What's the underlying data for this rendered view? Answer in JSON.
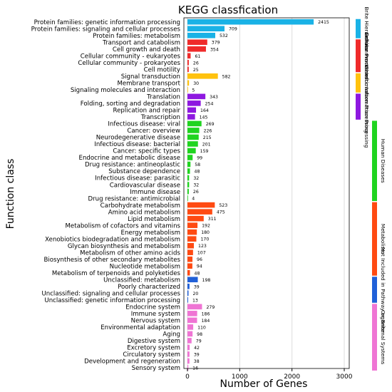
{
  "chart_data": {
    "type": "bar",
    "orientation": "horizontal",
    "title": "KEGG classfication",
    "xlabel": "Number of Genes",
    "ylabel": "Function class",
    "xlim": [
      0,
      3000
    ],
    "xticks": [
      "0",
      "1000",
      "2000",
      "3000"
    ],
    "grid": true,
    "categories": [
      "Protein families: genetic information processing",
      "Protein families: signaling and cellular processes",
      "Protein families: metabolism",
      "Transport and catabolism",
      "Cell growth and death",
      "Cellular community - eukaryotes",
      "Cellular community - prokaryotes",
      "Cell motility",
      "Signal transduction",
      "Membrane transport",
      "Signaling molecules and interaction",
      "Translation",
      "Folding, sorting and degradation",
      "Replication and repair",
      "Transcription",
      "Infectious disease: viral",
      "Cancer: overview",
      "Neurodegenerative disease",
      "Infectious disease: bacterial",
      "Cancer: specific types",
      "Endocrine and metabolic disease",
      "Drug resistance: antineoplastic",
      "Substance dependence",
      "Infectious disease: parasitic",
      "Cardiovascular disease",
      "Immune disease",
      "Drug resistance: antimicrobial",
      "Carbohydrate metabolism",
      "Amino acid metabolism",
      "Lipid metabolism",
      "Metabolism of cofactors and vitamins",
      "Energy metabolism",
      "Xenobiotics biodegradation and metabolism",
      "Glycan biosynthesis and metabolism",
      "Metabolism of other amino acids",
      "Biosynthesis of other secondary metabolites",
      "Nucleotide metabolism",
      "Metabolism of terpenoids and polyketides",
      "Unclassified: metabolism",
      "Poorly characterized",
      "Unclassified: signaling and cellular processes",
      "Unclassified: genetic information processing",
      "Endocrine system",
      "Immune system",
      "Nervous system",
      "Environmental adaptation",
      "Aging",
      "Digestive system",
      "Excretory system",
      "Circulatory system",
      "Development and regeneration",
      "Sensory system"
    ],
    "values": [
      2415,
      709,
      532,
      379,
      354,
      61,
      26,
      25,
      582,
      30,
      5,
      343,
      254,
      164,
      145,
      269,
      226,
      215,
      201,
      159,
      99,
      58,
      48,
      32,
      32,
      26,
      4,
      523,
      475,
      311,
      192,
      180,
      170,
      123,
      107,
      96,
      94,
      48,
      198,
      39,
      20,
      13,
      279,
      186,
      184,
      110,
      98,
      79,
      42,
      39,
      38,
      16
    ],
    "value_labels": [
      "2415",
      "709",
      "532",
      "379",
      "354",
      "61",
      "26",
      "25",
      "582",
      "30",
      "5",
      "343",
      "254",
      "164",
      "145",
      "269",
      "226",
      "215",
      "201",
      "159",
      "99",
      "58",
      "48",
      "32",
      "32",
      "26",
      "4",
      "523",
      "475",
      "311",
      "192",
      "180",
      "170",
      "123",
      "107",
      "96",
      "94",
      "48",
      "198",
      "39",
      "20",
      "13",
      "279",
      "186",
      "184",
      "110",
      "98",
      "79",
      "42",
      "39",
      "38",
      "16"
    ],
    "bar_colors": [
      "#1ab2e6",
      "#1ab2e6",
      "#1ab2e6",
      "#ef2b2b",
      "#ef2b2b",
      "#ef2b2b",
      "#ef2b2b",
      "#ef2b2b",
      "#ffc20e",
      "#ffc20e",
      "#ffc20e",
      "#8e18e0",
      "#8e18e0",
      "#8e18e0",
      "#8e18e0",
      "#1fd41f",
      "#1fd41f",
      "#1fd41f",
      "#1fd41f",
      "#1fd41f",
      "#1fd41f",
      "#1fd41f",
      "#1fd41f",
      "#1fd41f",
      "#1fd41f",
      "#1fd41f",
      "#1fd41f",
      "#ff4a12",
      "#ff4a12",
      "#ff4a12",
      "#ff4a12",
      "#ff4a12",
      "#ff4a12",
      "#ff4a12",
      "#ff4a12",
      "#ff4a12",
      "#ff4a12",
      "#ff4a12",
      "#2060d8",
      "#2060d8",
      "#2060d8",
      "#2060d8",
      "#ef75d4",
      "#ef75d4",
      "#ef75d4",
      "#ef75d4",
      "#ef75d4",
      "#ef75d4",
      "#ef75d4",
      "#ef75d4",
      "#ef75d4",
      "#ef75d4"
    ],
    "legend_left": [
      {
        "label": "Brite Hierarchies",
        "color": "#1ab2e6",
        "start": 0,
        "end": 2
      },
      {
        "label": "Cellular Processes",
        "color": "#ef2b2b",
        "start": 3,
        "end": 7
      },
      {
        "label": "Environmental Information Processing",
        "color": "#ffc20e",
        "start": 8,
        "end": 10
      },
      {
        "label": "Genetic Information Processing",
        "color": "#8e18e0",
        "start": 11,
        "end": 14
      }
    ],
    "legend_right": [
      {
        "label": "Human Diseases",
        "color": "#1fd41f",
        "start": 15,
        "end": 26
      },
      {
        "label": "Metabolism",
        "color": "#ff4a12",
        "start": 27,
        "end": 37
      },
      {
        "label": "Not Included in Pathway or Brite",
        "color": "#2060d8",
        "start": 38,
        "end": 41
      },
      {
        "label": "Organismal Systems",
        "color": "#ef75d4",
        "start": 42,
        "end": 51
      }
    ]
  }
}
